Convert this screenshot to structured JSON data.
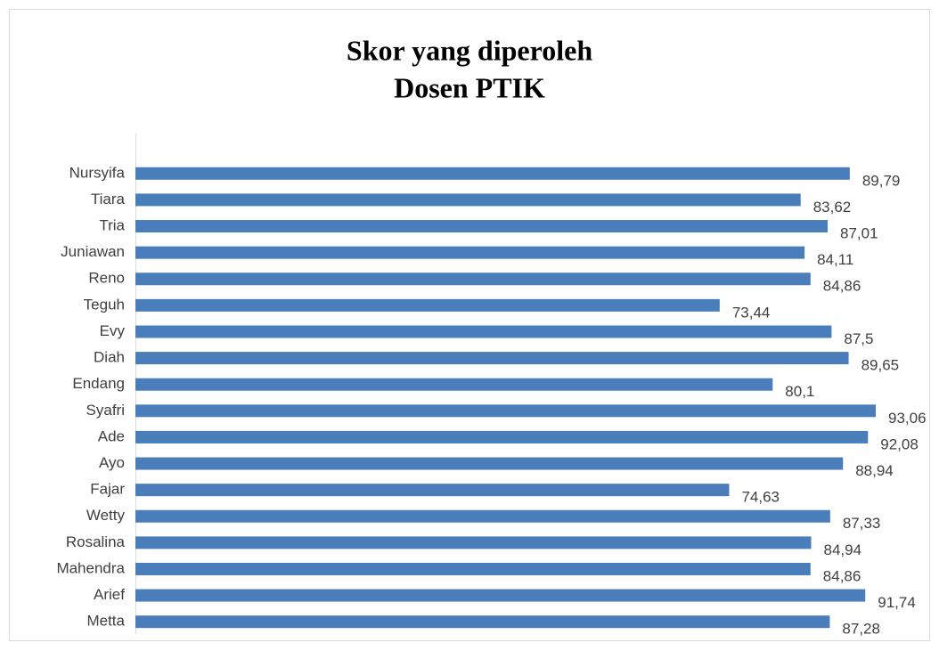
{
  "chart_data": {
    "type": "bar",
    "orientation": "horizontal",
    "title": [
      "Skor yang diperoleh",
      "Dosen PTIK"
    ],
    "categories": [
      "Nursyifa",
      "Tiara",
      "Tria",
      "Juniawan",
      "Reno",
      "Teguh",
      "Evy",
      "Diah",
      "Endang",
      "Syafri",
      "Ade",
      "Ayo",
      "Fajar",
      "Wetty",
      "Rosalina",
      "Mahendra",
      "Arief",
      "Metta"
    ],
    "values": [
      89.79,
      83.62,
      87.01,
      84.11,
      84.86,
      73.44,
      87.5,
      89.65,
      80.1,
      93.06,
      92.08,
      88.94,
      74.63,
      87.33,
      84.94,
      84.86,
      91.74,
      87.28
    ],
    "value_labels": [
      "89,79",
      "83,62",
      "87,01",
      "84,11",
      "84,86",
      "73,44",
      "87,5",
      "89,65",
      "80,1",
      "93,06",
      "92,08",
      "88,94",
      "74,63",
      "87,33",
      "84,94",
      "84,86",
      "91,74",
      "87,28"
    ],
    "color": "#4a7ebb",
    "xlim": [
      0,
      100
    ]
  }
}
